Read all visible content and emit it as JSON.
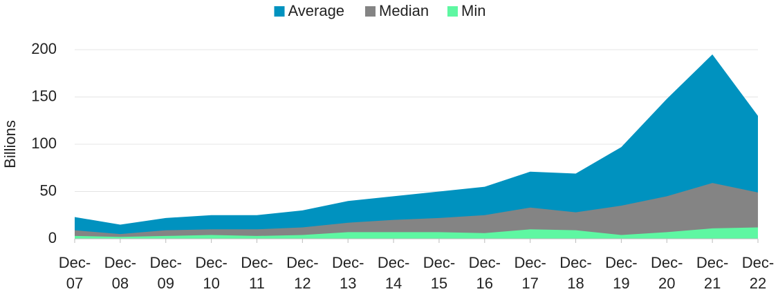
{
  "chart_data": {
    "type": "area",
    "ylabel": "Billions",
    "categories": [
      "Dec-07",
      "Dec-08",
      "Dec-09",
      "Dec-10",
      "Dec-11",
      "Dec-12",
      "Dec-13",
      "Dec-14",
      "Dec-15",
      "Dec-16",
      "Dec-17",
      "Dec-18",
      "Dec-19",
      "Dec-20",
      "Dec-21",
      "Dec-22"
    ],
    "series": [
      {
        "name": "Average",
        "color": "#0092bf",
        "values": [
          23,
          15,
          22,
          25,
          25,
          30,
          40,
          45,
          50,
          55,
          71,
          69,
          97,
          148,
          195,
          130
        ]
      },
      {
        "name": "Median",
        "color": "#848484",
        "values": [
          9,
          5,
          9,
          10,
          10,
          12,
          17,
          20,
          22,
          25,
          33,
          28,
          35,
          45,
          59,
          49
        ]
      },
      {
        "name": "Min",
        "color": "#5ef7a2",
        "values": [
          3,
          2,
          3,
          4,
          3,
          4,
          7,
          7,
          7,
          6,
          10,
          9,
          4,
          7,
          11,
          12
        ]
      }
    ],
    "ylim": [
      0,
      200
    ],
    "yticks": [
      0,
      50,
      100,
      150,
      200
    ],
    "grid": true,
    "legend": "top"
  }
}
